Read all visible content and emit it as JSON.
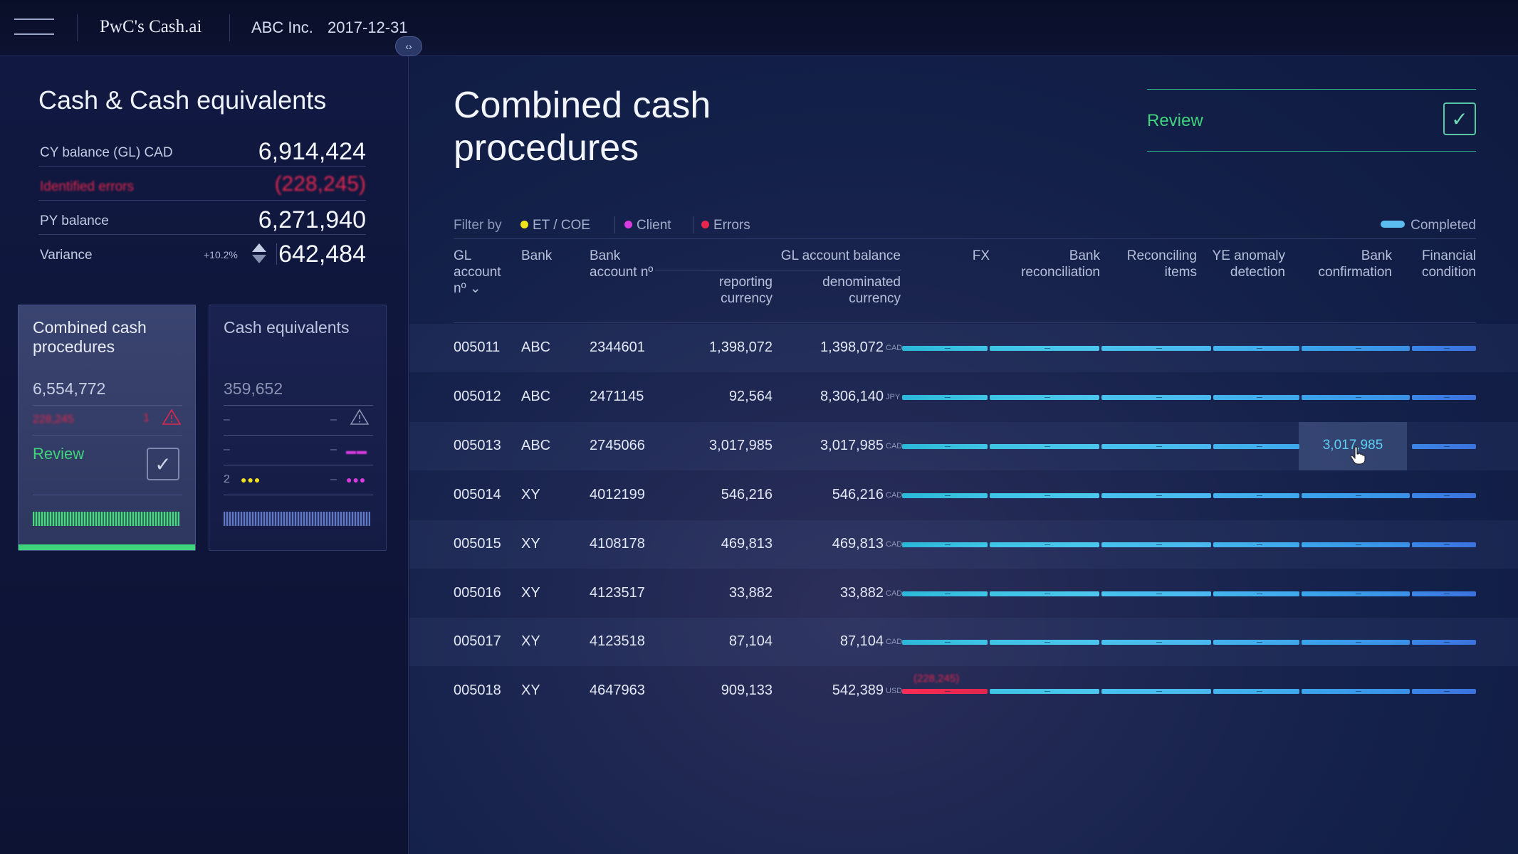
{
  "topbar": {
    "brand": "PwC's Cash.ai",
    "client": "ABC Inc.",
    "date": "2017-12-31"
  },
  "left_panel": {
    "title": "Cash & Cash equivalents",
    "metrics": {
      "cy_balance_label": "CY balance (GL) CAD",
      "cy_balance_value": "6,914,424",
      "identified_errors_label": "Identified errors",
      "identified_errors_value": "(228,245)",
      "py_balance_label": "PY balance",
      "py_balance_value": "6,271,940",
      "variance_label": "Variance",
      "variance_pct": "+10.2%",
      "variance_value": "642,484"
    },
    "cards": [
      {
        "title": "Combined cash procedures",
        "amount": "6,554,772",
        "error_value": "228,245",
        "error_count": "1",
        "review_label": "Review"
      },
      {
        "title": "Cash equivalents",
        "amount": "359,652",
        "dash": "–",
        "count": "2"
      }
    ]
  },
  "main": {
    "title": "Combined cash procedures",
    "review_label": "Review",
    "filter": {
      "label": "Filter by",
      "items": [
        {
          "label": "ET / COE",
          "color": "#f2e21b"
        },
        {
          "label": "Client",
          "color": "#d83be0"
        },
        {
          "label": "Errors",
          "color": "#e8264d"
        }
      ],
      "completed_label": "Completed"
    },
    "columns": {
      "gl_account": "GL account nº",
      "bank": "Bank",
      "bank_account": "Bank account nº",
      "gl_balance_group": "GL account balance",
      "reporting_currency": "reporting currency",
      "denominated_currency": "denominated currency",
      "fx": "FX",
      "bank_reconciliation": "Bank reconciliation",
      "reconciling_items": "Reconciling items",
      "ye_anomaly": "YE anomaly detection",
      "bank_confirmation": "Bank confirmation",
      "financial_condition": "Financial condition"
    },
    "rows": [
      {
        "gl": "005011",
        "bank": "ABC",
        "account": "2344601",
        "reporting": "1,398,072",
        "denominated": "1,398,072",
        "currency": "CAD"
      },
      {
        "gl": "005012",
        "bank": "ABC",
        "account": "2471145",
        "reporting": "92,564",
        "denominated": "8,306,140",
        "currency": "JPY"
      },
      {
        "gl": "005013",
        "bank": "ABC",
        "account": "2745066",
        "reporting": "3,017,985",
        "denominated": "3,017,985",
        "currency": "CAD",
        "bank_confirmation_value": "3,017,985"
      },
      {
        "gl": "005014",
        "bank": "XY",
        "account": "4012199",
        "reporting": "546,216",
        "denominated": "546,216",
        "currency": "CAD"
      },
      {
        "gl": "005015",
        "bank": "XY",
        "account": "4108178",
        "reporting": "469,813",
        "denominated": "469,813",
        "currency": "CAD"
      },
      {
        "gl": "005016",
        "bank": "XY",
        "account": "4123517",
        "reporting": "33,882",
        "denominated": "33,882",
        "currency": "CAD"
      },
      {
        "gl": "005017",
        "bank": "XY",
        "account": "4123518",
        "reporting": "87,104",
        "denominated": "87,104",
        "currency": "CAD"
      },
      {
        "gl": "005018",
        "bank": "XY",
        "account": "4647963",
        "reporting": "909,133",
        "denominated": "542,389",
        "currency": "USD",
        "fx_error_value": "(228,245)"
      }
    ],
    "status_colors": {
      "completed": "#5bbcf0",
      "error": "#e0264d",
      "review": "#3fd37a"
    }
  }
}
